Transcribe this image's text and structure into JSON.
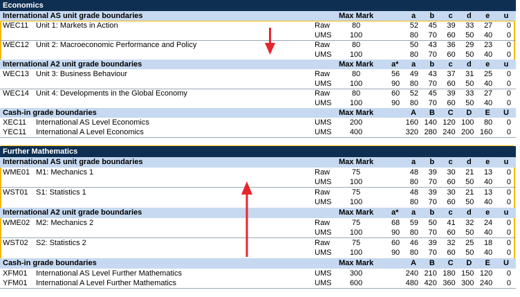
{
  "sections": [
    {
      "title": "Economics",
      "groups": [
        {
          "heading": "International AS unit grade boundaries",
          "max_mark_label": "Max Mark",
          "grade_labels": [
            "a",
            "b",
            "c",
            "d",
            "e",
            "u"
          ],
          "units": [
            {
              "code": "WEC11",
              "name": "Unit 1: Markets in Action",
              "rows": [
                {
                  "type": "Raw",
                  "max": 80,
                  "grades": [
                    52,
                    45,
                    39,
                    33,
                    27,
                    0
                  ]
                },
                {
                  "type": "UMS",
                  "max": 100,
                  "grades": [
                    80,
                    70,
                    60,
                    50,
                    40,
                    0
                  ]
                }
              ]
            },
            {
              "code": "WEC12",
              "name": "Unit 2: Macroeconomic Performance and Policy",
              "rows": [
                {
                  "type": "Raw",
                  "max": 80,
                  "grades": [
                    50,
                    43,
                    36,
                    29,
                    23,
                    0
                  ]
                },
                {
                  "type": "UMS",
                  "max": 100,
                  "grades": [
                    80,
                    70,
                    60,
                    50,
                    40,
                    0
                  ]
                }
              ]
            }
          ]
        },
        {
          "heading": "International A2 unit grade boundaries",
          "max_mark_label": "Max Mark",
          "grade_labels": [
            "a*",
            "a",
            "b",
            "c",
            "d",
            "e",
            "u"
          ],
          "units": [
            {
              "code": "WEC13",
              "name": "Unit 3: Business Behaviour",
              "rows": [
                {
                  "type": "Raw",
                  "max": 80,
                  "grades": [
                    56,
                    49,
                    43,
                    37,
                    31,
                    25,
                    0
                  ]
                },
                {
                  "type": "UMS",
                  "max": 100,
                  "grades": [
                    90,
                    80,
                    70,
                    60,
                    50,
                    40,
                    0
                  ]
                }
              ]
            },
            {
              "code": "WEC14",
              "name": "Unit 4: Developments in the Global Economy",
              "rows": [
                {
                  "type": "Raw",
                  "max": 80,
                  "grades": [
                    60,
                    52,
                    45,
                    39,
                    33,
                    27,
                    0
                  ]
                },
                {
                  "type": "UMS",
                  "max": 100,
                  "grades": [
                    90,
                    80,
                    70,
                    60,
                    50,
                    40,
                    0
                  ]
                }
              ]
            }
          ]
        },
        {
          "heading": "Cash-in grade boundaries",
          "max_mark_label": "Max Mark",
          "grade_labels": [
            "A",
            "B",
            "C",
            "D",
            "E",
            "U"
          ],
          "units": [
            {
              "code": "XEC11",
              "name": "International AS Level Economics",
              "rows": [
                {
                  "type": "UMS",
                  "max": 200,
                  "grades": [
                    160,
                    140,
                    120,
                    100,
                    80,
                    0
                  ]
                }
              ]
            },
            {
              "code": "YEC11",
              "name": "International A Level Economics",
              "rows": [
                {
                  "type": "UMS",
                  "max": 400,
                  "grades": [
                    320,
                    280,
                    240,
                    200,
                    160,
                    0
                  ]
                }
              ]
            }
          ]
        }
      ]
    },
    {
      "title": "Further Mathematics",
      "groups": [
        {
          "heading": "International AS unit grade boundaries",
          "max_mark_label": "Max Mark",
          "grade_labels": [
            "a",
            "b",
            "c",
            "d",
            "e",
            "u"
          ],
          "units": [
            {
              "code": "WME01",
              "name": "M1: Mechanics 1",
              "rows": [
                {
                  "type": "Raw",
                  "max": 75,
                  "grades": [
                    48,
                    39,
                    30,
                    21,
                    13,
                    0
                  ]
                },
                {
                  "type": "UMS",
                  "max": 100,
                  "grades": [
                    80,
                    70,
                    60,
                    50,
                    40,
                    0
                  ]
                }
              ]
            },
            {
              "code": "WST01",
              "name": "S1: Statistics 1",
              "rows": [
                {
                  "type": "Raw",
                  "max": 75,
                  "grades": [
                    48,
                    39,
                    30,
                    21,
                    13,
                    0
                  ]
                },
                {
                  "type": "UMS",
                  "max": 100,
                  "grades": [
                    80,
                    70,
                    60,
                    50,
                    40,
                    0
                  ]
                }
              ]
            }
          ]
        },
        {
          "heading": "International A2 unit grade boundaries",
          "max_mark_label": "Max Mark",
          "grade_labels": [
            "a*",
            "a",
            "b",
            "c",
            "d",
            "e",
            "u"
          ],
          "units": [
            {
              "code": "WME02",
              "name": "M2: Mechanics 2",
              "rows": [
                {
                  "type": "Raw",
                  "max": 75,
                  "grades": [
                    68,
                    59,
                    50,
                    41,
                    32,
                    24,
                    0
                  ]
                },
                {
                  "type": "UMS",
                  "max": 100,
                  "grades": [
                    90,
                    80,
                    70,
                    60,
                    50,
                    40,
                    0
                  ]
                }
              ]
            },
            {
              "code": "WST02",
              "name": "S2: Statistics 2",
              "rows": [
                {
                  "type": "Raw",
                  "max": 75,
                  "grades": [
                    60,
                    46,
                    39,
                    32,
                    25,
                    18,
                    0
                  ]
                },
                {
                  "type": "UMS",
                  "max": 100,
                  "grades": [
                    90,
                    80,
                    70,
                    60,
                    50,
                    40,
                    0
                  ]
                }
              ]
            }
          ]
        },
        {
          "heading": "Cash-in grade boundaries",
          "max_mark_label": "Max Mark",
          "grade_labels": [
            "A",
            "B",
            "C",
            "D",
            "E",
            "U"
          ],
          "units": [
            {
              "code": "XFM01",
              "name": "International AS Level Further Mathematics",
              "rows": [
                {
                  "type": "UMS",
                  "max": 300,
                  "grades": [
                    240,
                    210,
                    180,
                    150,
                    120,
                    0
                  ]
                }
              ]
            },
            {
              "code": "YFM01",
              "name": "International A Level Further Mathematics",
              "rows": [
                {
                  "type": "UMS",
                  "max": 600,
                  "grades": [
                    480,
                    420,
                    360,
                    300,
                    240,
                    0
                  ]
                }
              ]
            }
          ]
        }
      ]
    }
  ]
}
